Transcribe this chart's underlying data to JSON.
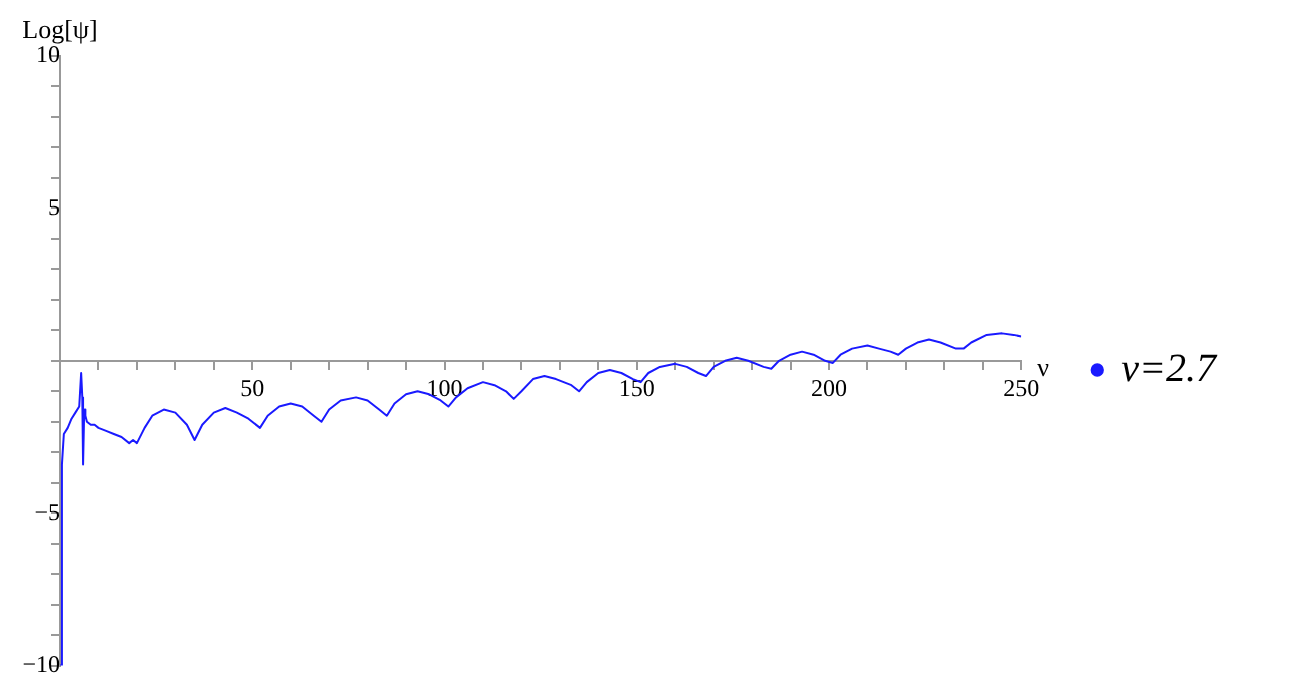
{
  "chart_data": {
    "type": "line",
    "xlabel": "ν",
    "ylabel": "Log[ψ]",
    "xlim": [
      0,
      250
    ],
    "ylim": [
      -10,
      10
    ],
    "xticks": [
      {
        "value": 0,
        "label": null
      },
      {
        "value": 10,
        "label": null
      },
      {
        "value": 20,
        "label": null
      },
      {
        "value": 30,
        "label": null
      },
      {
        "value": 40,
        "label": null
      },
      50,
      {
        "value": 60,
        "label": null
      },
      {
        "value": 70,
        "label": null
      },
      {
        "value": 80,
        "label": null
      },
      {
        "value": 90,
        "label": null
      },
      100,
      {
        "value": 110,
        "label": null
      },
      {
        "value": 120,
        "label": null
      },
      {
        "value": 130,
        "label": null
      },
      {
        "value": 140,
        "label": null
      },
      150,
      {
        "value": 160,
        "label": null
      },
      {
        "value": 170,
        "label": null
      },
      {
        "value": 180,
        "label": null
      },
      {
        "value": 190,
        "label": null
      },
      200,
      {
        "value": 210,
        "label": null
      },
      {
        "value": 220,
        "label": null
      },
      {
        "value": 230,
        "label": null
      },
      {
        "value": 240,
        "label": null
      },
      250
    ],
    "yticks": [
      -10,
      {
        "value": -9,
        "label": null
      },
      {
        "value": -8,
        "label": null
      },
      {
        "value": -7,
        "label": null
      },
      {
        "value": -6,
        "label": null
      },
      -5,
      {
        "value": -4,
        "label": null
      },
      {
        "value": -3,
        "label": null
      },
      {
        "value": -2,
        "label": null
      },
      {
        "value": -1,
        "label": null
      },
      {
        "value": 0,
        "label": null
      },
      {
        "value": 1,
        "label": null
      },
      {
        "value": 2,
        "label": null
      },
      {
        "value": 3,
        "label": null
      },
      {
        "value": 4,
        "label": null
      },
      5,
      {
        "value": 6,
        "label": null
      },
      {
        "value": 7,
        "label": null
      },
      {
        "value": 8,
        "label": null
      },
      {
        "value": 9,
        "label": null
      },
      10
    ],
    "grid": false,
    "legend": "right",
    "marker": "none",
    "line_style": "solid",
    "series": [
      {
        "name": "ν=2.7",
        "color": "#1a1aff",
        "x": [
          0,
          0.5,
          1,
          2,
          3,
          4,
          5,
          5.5,
          5.8,
          6,
          6.3,
          6.6,
          7,
          8,
          9,
          10,
          12,
          14,
          16,
          18,
          19,
          20,
          22,
          24,
          27,
          30,
          33,
          35,
          37,
          40,
          43,
          46,
          49,
          52,
          54,
          57,
          60,
          63,
          66,
          68,
          70,
          73,
          77,
          80,
          83,
          85,
          87,
          90,
          93,
          96,
          99,
          101,
          103,
          106,
          110,
          113,
          116,
          118,
          120,
          123,
          126,
          129,
          133,
          135,
          137,
          140,
          143,
          146,
          149,
          151,
          153,
          156,
          160,
          163,
          166,
          168,
          170,
          173,
          176,
          179,
          183,
          185,
          187,
          190,
          193,
          196,
          199,
          201,
          203,
          206,
          210,
          213,
          216,
          218,
          220,
          223,
          226,
          229,
          233,
          235,
          237,
          241,
          245,
          248,
          250
        ],
        "values": [
          -10,
          -3.4,
          -2.4,
          -2.2,
          -1.9,
          -1.7,
          -1.5,
          -0.4,
          -1.2,
          -3.4,
          -1.6,
          -1.8,
          -2.0,
          -2.1,
          -2.1,
          -2.2,
          -2.3,
          -2.4,
          -2.5,
          -2.7,
          -2.6,
          -2.7,
          -2.2,
          -1.8,
          -1.6,
          -1.7,
          -2.1,
          -2.6,
          -2.1,
          -1.7,
          -1.55,
          -1.7,
          -1.9,
          -2.2,
          -1.8,
          -1.5,
          -1.4,
          -1.5,
          -1.8,
          -2.0,
          -1.6,
          -1.3,
          -1.2,
          -1.3,
          -1.6,
          -1.8,
          -1.4,
          -1.1,
          -1.0,
          -1.1,
          -1.3,
          -1.5,
          -1.2,
          -0.9,
          -0.7,
          -0.8,
          -1.0,
          -1.25,
          -1.0,
          -0.6,
          -0.5,
          -0.6,
          -0.8,
          -1.0,
          -0.7,
          -0.4,
          -0.3,
          -0.4,
          -0.6,
          -0.7,
          -0.4,
          -0.2,
          -0.1,
          -0.2,
          -0.4,
          -0.5,
          -0.2,
          0,
          0.1,
          0,
          -0.2,
          -0.26,
          0,
          0.2,
          0.3,
          0.2,
          0,
          -0.07,
          0.2,
          0.4,
          0.5,
          0.4,
          0.3,
          0.2,
          0.4,
          0.6,
          0.7,
          0.6,
          0.4,
          0.4,
          0.6,
          0.85,
          0.9,
          0.85,
          0.8
        ]
      }
    ]
  }
}
